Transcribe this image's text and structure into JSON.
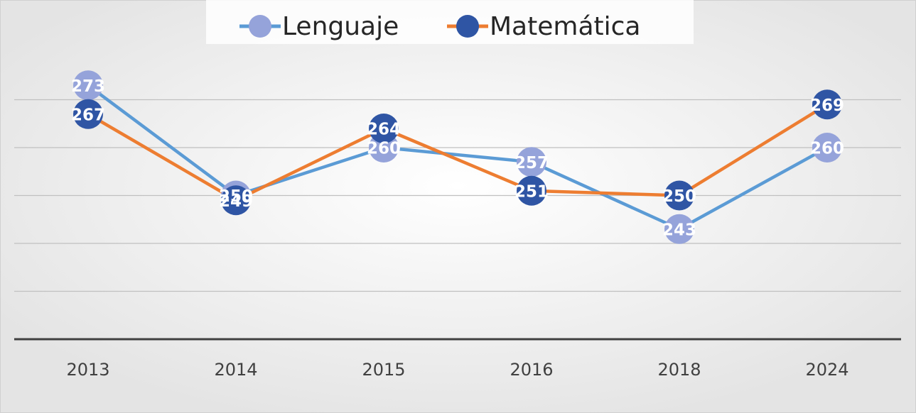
{
  "chart_data": {
    "type": "line",
    "categories": [
      "2013",
      "2014",
      "2015",
      "2016",
      "2018",
      "2024"
    ],
    "series": [
      {
        "name": "Lenguaje",
        "color": "#5b9bd5",
        "marker_color": "#95a3da",
        "values": [
          273,
          250,
          260,
          257,
          243,
          260
        ]
      },
      {
        "name": "Matemática",
        "color": "#ed7d31",
        "marker_color": "#2f55a4",
        "values": [
          267,
          249,
          264,
          251,
          250,
          269
        ]
      }
    ],
    "ylim": [
      220,
      280
    ],
    "yticks": [
      230,
      240,
      250,
      260,
      270
    ],
    "grid": true,
    "legend": "top"
  }
}
